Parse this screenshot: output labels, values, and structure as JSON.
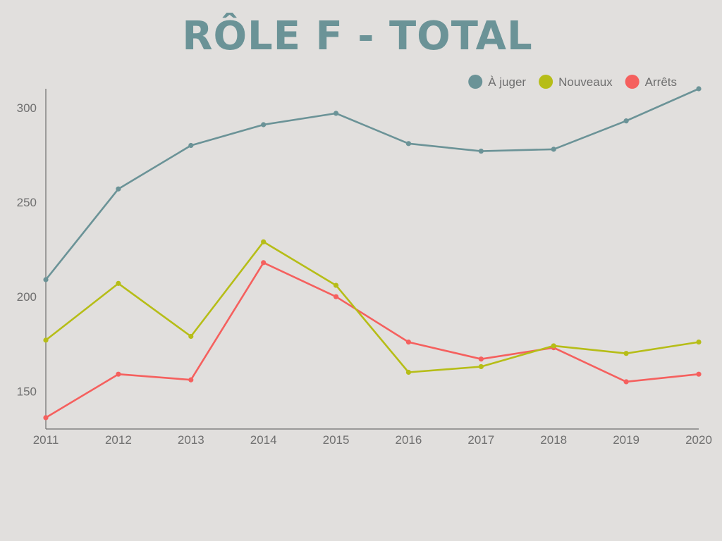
{
  "chart_data": {
    "type": "line",
    "title": "RÔLE F - TOTAL",
    "xlabel": "",
    "ylabel": "",
    "categories": [
      "2011",
      "2012",
      "2013",
      "2014",
      "2015",
      "2016",
      "2017",
      "2018",
      "2019",
      "2020"
    ],
    "yticks": [
      "150",
      "200",
      "250",
      "300"
    ],
    "ylim": [
      130,
      310
    ],
    "legend_position": "top-right",
    "grid": false,
    "series": [
      {
        "name": "À juger",
        "color": "#6b9397",
        "values": [
          209,
          257,
          280,
          291,
          297,
          281,
          277,
          278,
          293,
          310
        ]
      },
      {
        "name": "Nouveaux",
        "color": "#b6bd17",
        "values": [
          177,
          207,
          179,
          229,
          206,
          160,
          163,
          174,
          170,
          176
        ]
      },
      {
        "name": "Arrêts",
        "color": "#f5605e",
        "values": [
          136,
          159,
          156,
          218,
          200,
          176,
          167,
          173,
          155,
          159
        ]
      }
    ],
    "colors": {
      "title": "#6b9397",
      "axis": "#6f6f6f",
      "tick_text": "#6f6f6f",
      "legend_text": "#6f6f6f",
      "background": "#e1dfdd"
    }
  }
}
